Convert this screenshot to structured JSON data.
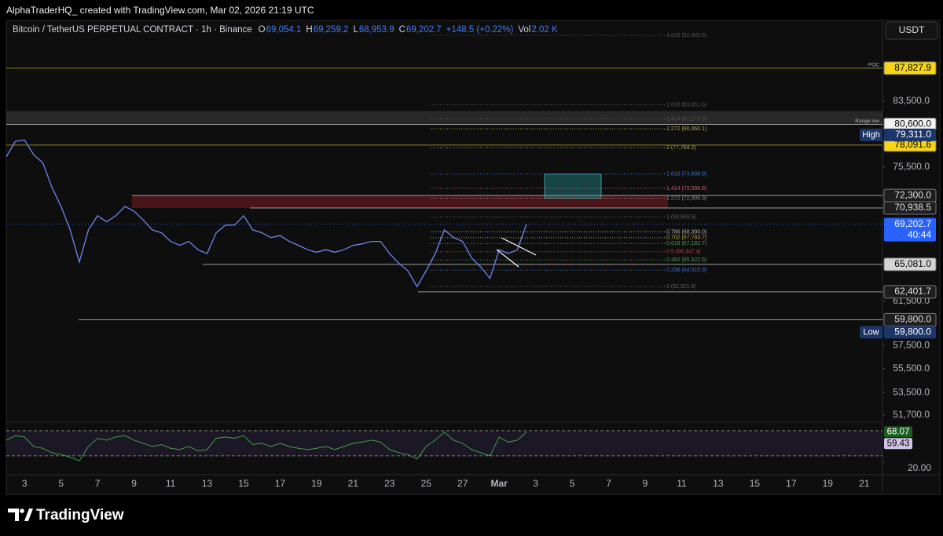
{
  "header": {
    "credit": "AlphaTraderHQ_ created with TradingView.com, Mar 02, 2026 21:19 UTC",
    "currency": "USDT",
    "brand": "TradingView"
  },
  "legend": {
    "symbol": "Bitcoin / TetherUS PERPETUAL CONTRACT · 1h · Binance",
    "ohlc": [
      {
        "key": "O",
        "text": "69,054.1"
      },
      {
        "key": "H",
        "text": "69,259.2"
      },
      {
        "key": "L",
        "text": "68,953.9"
      },
      {
        "key": "C",
        "text": "69,202.7"
      }
    ],
    "change": "+148.5 (+0.22%)",
    "volume_key": "Vol",
    "volume": "2.02 K"
  },
  "chart_data": {
    "type": "line",
    "log_scale": true,
    "categories": [
      null,
      null,
      "3",
      null,
      null,
      null,
      "5",
      null,
      null,
      null,
      "7",
      null,
      null,
      null,
      "9",
      null,
      null,
      null,
      "11",
      null,
      null,
      null,
      "13",
      null,
      null,
      null,
      "15",
      null,
      null,
      null,
      "17",
      null,
      null,
      null,
      "19",
      null,
      null,
      null,
      "21",
      null,
      null,
      null,
      "23",
      null,
      null,
      null,
      "25",
      null,
      null,
      null,
      "27",
      null,
      null,
      null,
      "Mar",
      null,
      null,
      null,
      "3",
      null,
      null,
      null,
      "5",
      null,
      null,
      null,
      "7",
      null,
      null,
      null,
      "9",
      null,
      null,
      null,
      "11",
      null,
      null,
      null,
      "13",
      null,
      null,
      null,
      "15",
      null,
      null,
      null,
      "17",
      null,
      null,
      null,
      "19",
      null,
      null,
      null,
      "21",
      null
    ],
    "series": [
      {
        "name": "Bitcoin / TetherUS PERPETUAL CONTRACT · 1h · Binance",
        "color": "#6f86f0",
        "values": [
          76700,
          78550,
          78700,
          76950,
          76000,
          73200,
          71100,
          68600,
          65300,
          68600,
          70100,
          69450,
          70100,
          71100,
          70600,
          69650,
          68600,
          68300,
          67400,
          67000,
          67400,
          66550,
          66150,
          68300,
          69100,
          69100,
          70100,
          68600,
          68300,
          67800,
          68000,
          67400,
          67000,
          66550,
          66300,
          66550,
          66300,
          66550,
          67000,
          67150,
          67400,
          67400,
          66150,
          65200,
          64450,
          62900,
          64450,
          66150,
          68600,
          67800,
          67400,
          65700,
          64800,
          63700,
          66550,
          66150,
          66550,
          69202.7,
          null,
          null,
          null,
          null,
          null,
          null,
          null,
          null,
          null,
          null,
          null,
          null,
          null,
          null,
          null,
          null,
          null,
          null,
          null,
          null,
          null,
          null,
          null,
          null,
          null,
          null,
          null,
          null,
          null,
          null,
          null,
          null,
          null,
          null,
          null,
          null,
          null,
          null
        ]
      }
    ],
    "ylim": [
      51010,
      94250
    ],
    "yticks": [
      {
        "value": 83500,
        "label": "83,500.0"
      },
      {
        "value": 75500,
        "label": "75,500.0"
      },
      {
        "value": 61500,
        "label": "61,500.0"
      },
      {
        "value": 57500,
        "label": "57,500.0"
      },
      {
        "value": 55500,
        "label": "55,500.0"
      },
      {
        "value": 53500,
        "label": "53,500.0"
      },
      {
        "value": 51700,
        "label": "51,700.0"
      }
    ],
    "price_lines": [
      {
        "value": 87827.9,
        "label": "87,827.9",
        "note": "POC",
        "line": "#8f8526",
        "bg": "#f5d516",
        "fg": "#000000"
      },
      {
        "value": 80600,
        "label": "80,600.0",
        "note": "Range low",
        "line": "#9a9a9a",
        "bg": "#f2f2f2",
        "fg": "#000000"
      },
      {
        "value": 78091.6,
        "label": "78,091.6",
        "line": "#8f8526",
        "bg": "#f5d516",
        "fg": "#000000"
      },
      {
        "value": 72300,
        "label": "72,300.0",
        "line": "#9a9a9a",
        "bg": "#1e1e1e",
        "fg": "#e0e0e0"
      },
      {
        "value": 70938.5,
        "label": "70,938.5",
        "line": "#9a9a9a",
        "bg": "#1e1e1e",
        "fg": "#e0e0e0"
      },
      {
        "value": 65081,
        "label": "65,081.0",
        "line": "#9a9a9a",
        "bg": "#d4d4d4",
        "fg": "#000000"
      },
      {
        "value": 62401.7,
        "label": "62,401.7",
        "line": "#9a9a9a",
        "bg": "#1e1e1e",
        "fg": "#e0e0e0"
      },
      {
        "value": 59800,
        "label": "59,800.0",
        "line": "#9a9a9a",
        "bg": "#1e1e1e",
        "fg": "#e0e0e0"
      }
    ],
    "last_price": {
      "value": 69202.7,
      "label": "69,202.7",
      "countdown": "40:44",
      "color": "#2962ff"
    },
    "extremes": [
      {
        "name": "High",
        "value": 79311,
        "label": "79,311.0"
      },
      {
        "name": "Low",
        "value": 59800,
        "label": "59,800.0"
      }
    ],
    "fib_levels": [
      {
        "value": 92340.6,
        "label": "3.618 (92,340.6)",
        "color": "#555555"
      },
      {
        "value": 83051.5,
        "label": "2.618 (83,051.5)",
        "color": "#555555"
      },
      {
        "value": 81276.5,
        "label": "2.414 (81,276.5)",
        "color": "#555555"
      },
      {
        "value": 80060.1,
        "label": "2.272 (80,060.1)",
        "color": "#b8a94a"
      },
      {
        "value": 77784.2,
        "label": "2 (77,784.2)",
        "color": "#b8a94a"
      },
      {
        "value": 74698.9,
        "label": "1.618 (74,698.9)",
        "color": "#3b6fd6"
      },
      {
        "value": 73098.6,
        "label": "1.414 (73,098.6)",
        "color": "#c25b6e"
      },
      {
        "value": 72006.3,
        "label": "1.272 (72,006.3)",
        "color": "#909090"
      },
      {
        "value": 69959.5,
        "label": "1 (69,959.5)",
        "color": "#606060"
      },
      {
        "value": 68390,
        "label": "0.786 (68,390.0)",
        "color": "#b0b0b0"
      },
      {
        "value": 67783.7,
        "label": "0.702 (67,783.7)",
        "color": "#b8a94a"
      },
      {
        "value": 67182.7,
        "label": "0.618 (67,182.7)",
        "color": "#4c9a5a"
      },
      {
        "value": 66347.4,
        "label": "0.5 (66,347.4)",
        "color": "#c0404a"
      },
      {
        "value": 65522.5,
        "label": "0.382 (65,522.5)",
        "color": "#4c9a5a"
      },
      {
        "value": 64515.9,
        "label": "0.236 (64,515.9)",
        "color": "#3b6fd6"
      },
      {
        "value": 62921.6,
        "label": "0 (62,921.6)",
        "color": "#606060"
      }
    ],
    "rsi": {
      "color": "#43a047",
      "ylim": [
        0,
        81
      ],
      "bands": [
        70,
        30
      ],
      "values": [
        55,
        62,
        60,
        45,
        42,
        35,
        32,
        28,
        22,
        45,
        58,
        55,
        60,
        62,
        55,
        50,
        45,
        48,
        42,
        40,
        45,
        38,
        40,
        58,
        60,
        58,
        62,
        48,
        50,
        45,
        50,
        45,
        42,
        40,
        42,
        45,
        40,
        45,
        50,
        52,
        55,
        52,
        40,
        35,
        32,
        25,
        45,
        55,
        68,
        55,
        50,
        40,
        35,
        30,
        60,
        52,
        55,
        68.07,
        null,
        null,
        null,
        null,
        null,
        null,
        null,
        null,
        null,
        null,
        null,
        null,
        null,
        null,
        null,
        null,
        null,
        null,
        null,
        null,
        null,
        null,
        null,
        null,
        null,
        null,
        null,
        null,
        null,
        null,
        null,
        null,
        null,
        null,
        null,
        null,
        null,
        null
      ],
      "yticks": [
        {
          "value": 20,
          "label": "20.00"
        }
      ],
      "labels": [
        {
          "value": 68.07,
          "label": "68.07",
          "bg": "#1b5e20",
          "fg": "#ffffff"
        },
        {
          "value": 59.43,
          "label": "59.43",
          "bg": "#d1c4e9",
          "fg": "#000000"
        }
      ]
    }
  }
}
